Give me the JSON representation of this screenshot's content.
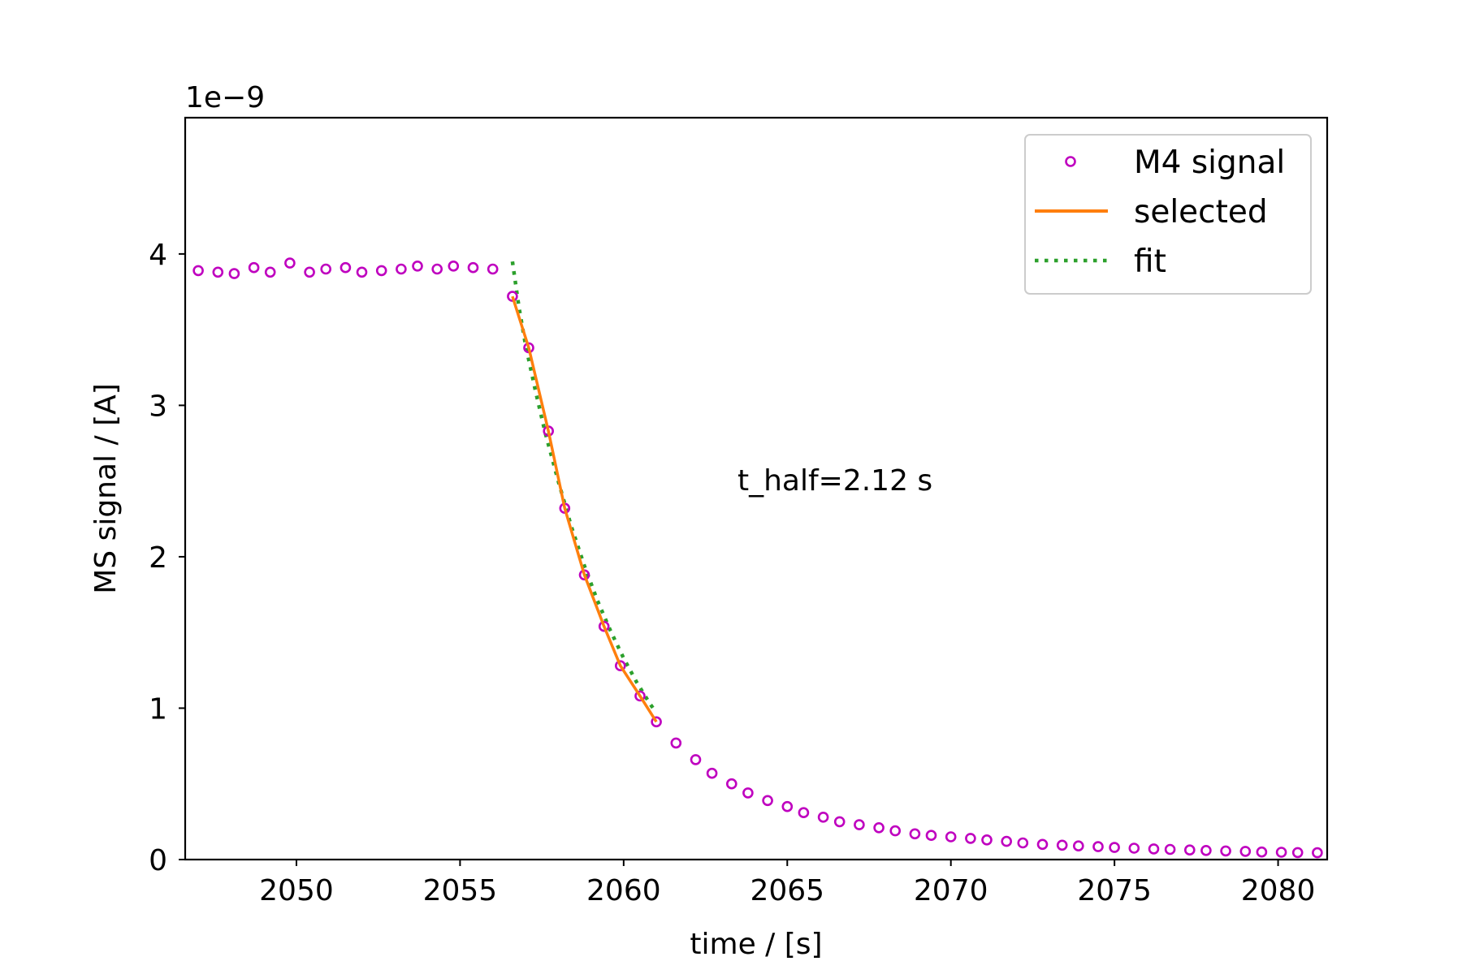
{
  "chart_data": {
    "type": "scatter",
    "title": "",
    "xlabel": "time / [s]",
    "ylabel": "MS signal / [A]",
    "y_offset_label": "1e−9",
    "y_scale": 1e-09,
    "xlim": [
      2046.6,
      2081.5
    ],
    "ylim": [
      0,
      4.9
    ],
    "x_ticks": [
      2050,
      2055,
      2060,
      2065,
      2070,
      2075,
      2080
    ],
    "y_ticks": [
      0,
      1,
      2,
      3,
      4
    ],
    "grid": false,
    "legend_placement": "top-right",
    "annotation": "t_half=2.12 s",
    "colors": {
      "m4": "#bf00bf",
      "selected": "#ff7f0e",
      "fit": "#2ca02c"
    },
    "series": [
      {
        "name": "M4 signal",
        "style": "open-circle-markers",
        "x": [
          2047.0,
          2047.6,
          2048.1,
          2048.7,
          2049.2,
          2049.8,
          2050.4,
          2050.9,
          2051.5,
          2052.0,
          2052.6,
          2053.2,
          2053.7,
          2054.3,
          2054.8,
          2055.4,
          2056.0,
          2056.6,
          2057.1,
          2057.7,
          2058.2,
          2058.8,
          2059.4,
          2059.9,
          2060.5,
          2061.0,
          2061.6,
          2062.2,
          2062.7,
          2063.3,
          2063.8,
          2064.4,
          2065.0,
          2065.5,
          2066.1,
          2066.6,
          2067.2,
          2067.8,
          2068.3,
          2068.9,
          2069.4,
          2070.0,
          2070.6,
          2071.1,
          2071.7,
          2072.2,
          2072.8,
          2073.4,
          2073.9,
          2074.5,
          2075.0,
          2075.6,
          2076.2,
          2076.7,
          2077.3,
          2077.8,
          2078.4,
          2079.0,
          2079.5,
          2080.1,
          2080.6,
          2081.2
        ],
        "y": [
          3.89,
          3.88,
          3.87,
          3.91,
          3.88,
          3.94,
          3.88,
          3.9,
          3.91,
          3.88,
          3.89,
          3.9,
          3.92,
          3.9,
          3.92,
          3.91,
          3.9,
          3.72,
          3.38,
          2.83,
          2.32,
          1.88,
          1.54,
          1.28,
          1.08,
          0.91,
          0.77,
          0.66,
          0.57,
          0.5,
          0.44,
          0.39,
          0.35,
          0.31,
          0.28,
          0.25,
          0.23,
          0.21,
          0.19,
          0.17,
          0.16,
          0.15,
          0.14,
          0.13,
          0.12,
          0.11,
          0.1,
          0.095,
          0.09,
          0.085,
          0.08,
          0.075,
          0.07,
          0.067,
          0.063,
          0.06,
          0.057,
          0.054,
          0.05,
          0.048,
          0.046,
          0.045
        ]
      },
      {
        "name": "selected",
        "style": "solid-line",
        "x": [
          2056.6,
          2057.1,
          2057.7,
          2058.2,
          2058.8,
          2059.4,
          2059.9,
          2060.5,
          2061.0
        ],
        "y": [
          3.72,
          3.38,
          2.83,
          2.32,
          1.88,
          1.54,
          1.28,
          1.08,
          0.91
        ]
      },
      {
        "name": "fit",
        "style": "dotted-line",
        "x": [
          2056.6,
          2056.8,
          2057.0,
          2057.3,
          2057.6,
          2058.0,
          2058.4,
          2058.8,
          2059.2,
          2059.6,
          2060.0,
          2060.4,
          2060.8,
          2061.0
        ],
        "y": [
          3.95,
          3.65,
          3.4,
          3.1,
          2.82,
          2.5,
          2.2,
          1.94,
          1.71,
          1.51,
          1.33,
          1.17,
          1.03,
          0.97
        ]
      }
    ]
  }
}
